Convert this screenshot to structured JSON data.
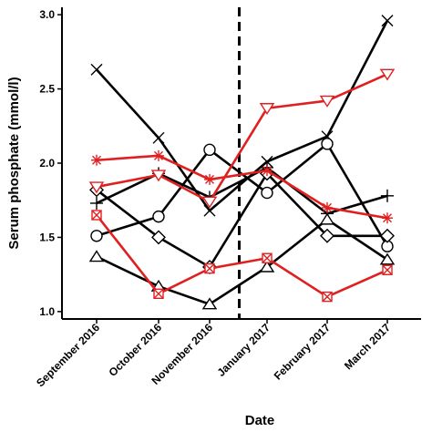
{
  "chart_data": {
    "type": "line",
    "title": "",
    "xlabel": "Date",
    "ylabel": "Serum phosphate (mmol/l)",
    "categories": [
      "September 2016",
      "October 2016",
      "November 2016",
      "January 2017",
      "February 2017",
      "March 2017"
    ],
    "ylim": [
      0.95,
      3.05
    ],
    "yticks": [
      "1.0",
      "1.5",
      "2.0",
      "2.5",
      "3.0"
    ],
    "grid": false,
    "legend": "none",
    "vertical_dashed_line_between": [
      "November 2016",
      "January 2017"
    ],
    "series": [
      {
        "marker": "x",
        "color": "#000000",
        "values": [
          2.63,
          2.17,
          1.68,
          2.01,
          2.18,
          2.96
        ]
      },
      {
        "marker": "plus",
        "color": "#000000",
        "values": [
          1.73,
          1.93,
          1.77,
          1.97,
          1.66,
          1.78
        ]
      },
      {
        "marker": "circle",
        "color": "#000000",
        "values": [
          1.51,
          1.64,
          2.09,
          1.8,
          2.13,
          1.44
        ]
      },
      {
        "marker": "diamond",
        "color": "#000000",
        "values": [
          1.82,
          1.5,
          1.3,
          1.93,
          1.51,
          1.51
        ]
      },
      {
        "marker": "triangle",
        "color": "#000000",
        "values": [
          1.37,
          1.17,
          1.05,
          1.3,
          1.62,
          1.35
        ]
      },
      {
        "marker": "triangle-down",
        "color": "#e02020",
        "values": [
          1.84,
          1.92,
          1.74,
          2.37,
          2.42,
          2.6
        ]
      },
      {
        "marker": "asterisk",
        "color": "#e02020",
        "values": [
          2.02,
          2.05,
          1.89,
          1.95,
          1.7,
          1.63
        ]
      },
      {
        "marker": "square-x",
        "color": "#e02020",
        "values": [
          1.65,
          1.12,
          1.29,
          1.36,
          1.1,
          1.28
        ]
      }
    ]
  }
}
